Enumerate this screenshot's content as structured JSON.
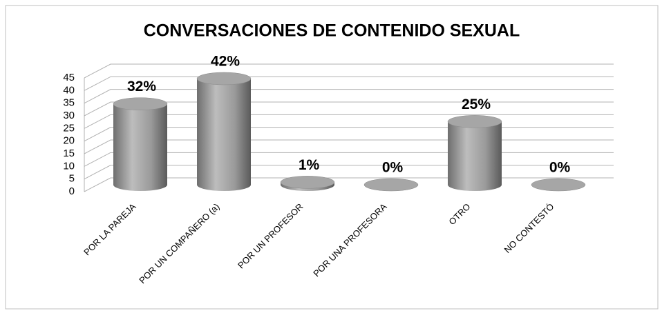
{
  "chart_data": {
    "type": "bar3d",
    "title": "CONVERSACIONES DE CONTENIDO SEXUAL",
    "categories": [
      "POR LA PAREJA",
      "POR UN COMPAÑERO (a)",
      "POR UN PROFESOR",
      "POR UNA PROFESORA",
      "OTRO",
      "NO CONTESTÓ"
    ],
    "values": [
      32,
      42,
      1,
      0,
      25,
      0
    ],
    "value_labels": [
      "32%",
      "42%",
      "1%",
      "0%",
      "25%",
      "0%"
    ],
    "color": "#8c8c8c",
    "ylim": [
      0,
      45
    ],
    "yticks": [
      0,
      5,
      10,
      15,
      20,
      25,
      30,
      35,
      40,
      45
    ],
    "grid": true
  }
}
